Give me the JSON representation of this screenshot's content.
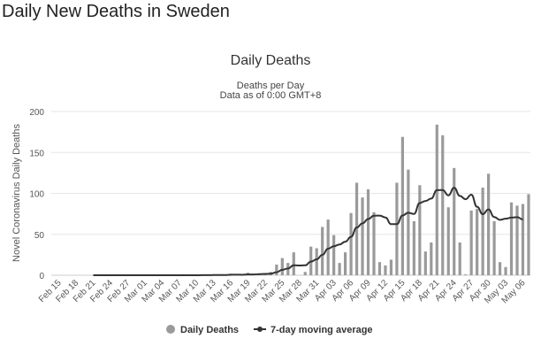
{
  "page": {
    "title": "Daily New Deaths in Sweden"
  },
  "chart_data": {
    "type": "bar",
    "title": "Daily Deaths",
    "subtitle": [
      "Deaths per Day",
      "Data as of 0:00 GMT+8"
    ],
    "ylabel": "Novel Coronavirus Daily Deaths",
    "xlabel": "",
    "ylim": [
      0,
      200
    ],
    "yticks": [
      0,
      50,
      100,
      150,
      200
    ],
    "grid": true,
    "legend_position": "bottom",
    "colors": {
      "bars": "#9a9a9a",
      "line": "#333333"
    },
    "x": [
      "Feb 15",
      "Feb 16",
      "Feb 17",
      "Feb 18",
      "Feb 19",
      "Feb 20",
      "Feb 21",
      "Feb 22",
      "Feb 23",
      "Feb 24",
      "Feb 25",
      "Feb 26",
      "Feb 27",
      "Feb 28",
      "Feb 29",
      "Mar 01",
      "Mar 02",
      "Mar 03",
      "Mar 04",
      "Mar 05",
      "Mar 06",
      "Mar 07",
      "Mar 08",
      "Mar 09",
      "Mar 10",
      "Mar 11",
      "Mar 12",
      "Mar 13",
      "Mar 14",
      "Mar 15",
      "Mar 16",
      "Mar 17",
      "Mar 18",
      "Mar 19",
      "Mar 20",
      "Mar 21",
      "Mar 22",
      "Mar 23",
      "Mar 24",
      "Mar 25",
      "Mar 26",
      "Mar 27",
      "Mar 28",
      "Mar 29",
      "Mar 30",
      "Mar 31",
      "Apr 01",
      "Apr 02",
      "Apr 03",
      "Apr 04",
      "Apr 05",
      "Apr 06",
      "Apr 07",
      "Apr 08",
      "Apr 09",
      "Apr 10",
      "Apr 11",
      "Apr 12",
      "Apr 13",
      "Apr 14",
      "Apr 15",
      "Apr 16",
      "Apr 17",
      "Apr 18",
      "Apr 19",
      "Apr 20",
      "Apr 21",
      "Apr 22",
      "Apr 23",
      "Apr 24",
      "Apr 25",
      "Apr 26",
      "Apr 27",
      "Apr 28",
      "Apr 29",
      "Apr 30",
      "May 01",
      "May 02",
      "May 03",
      "May 04",
      "May 05",
      "May 06",
      "May 07"
    ],
    "series": [
      {
        "name": "Daily Deaths",
        "type": "bar",
        "values": [
          0,
          0,
          0,
          0,
          0,
          0,
          0,
          0,
          0,
          0,
          0,
          0,
          0,
          0,
          0,
          0,
          0,
          0,
          0,
          0,
          0,
          0,
          0,
          0,
          0,
          1,
          0,
          1,
          0,
          0,
          2,
          1,
          0,
          3,
          1,
          2,
          2,
          4,
          13,
          21,
          15,
          28,
          0,
          4,
          35,
          33,
          59,
          68,
          49,
          15,
          28,
          76,
          113,
          95,
          105,
          77,
          16,
          12,
          19,
          113,
          169,
          129,
          66,
          110,
          29,
          40,
          184,
          171,
          83,
          131,
          40,
          1,
          79,
          81,
          107,
          124,
          66,
          16,
          10,
          89,
          85,
          87,
          99
        ]
      },
      {
        "name": "7-day moving average",
        "type": "line",
        "values": [
          null,
          null,
          null,
          null,
          null,
          null,
          0,
          0,
          0,
          0,
          0,
          0,
          0,
          0,
          0,
          0,
          0,
          0,
          0,
          0,
          0,
          0,
          0,
          0,
          0,
          0.1,
          0.1,
          0.3,
          0.3,
          0.3,
          0.6,
          0.7,
          0.6,
          1.0,
          1.0,
          1.3,
          1.6,
          1.9,
          3.6,
          6.6,
          8.3,
          12.1,
          11.9,
          12.1,
          16.6,
          19.4,
          24.9,
          32.4,
          35.4,
          37.6,
          41.0,
          46.9,
          58.3,
          63.4,
          68.7,
          72.7,
          72.9,
          70.6,
          62.4,
          62.4,
          73.0,
          76.4,
          74.9,
          88.3,
          90.7,
          93.7,
          103.9,
          104.1,
          97.6,
          106.9,
          96.9,
          92.9,
          98.4,
          83.7,
          74.6,
          80.4,
          71.1,
          67.7,
          69.0,
          70.4,
          71.0,
          68.1,
          null
        ]
      }
    ]
  }
}
